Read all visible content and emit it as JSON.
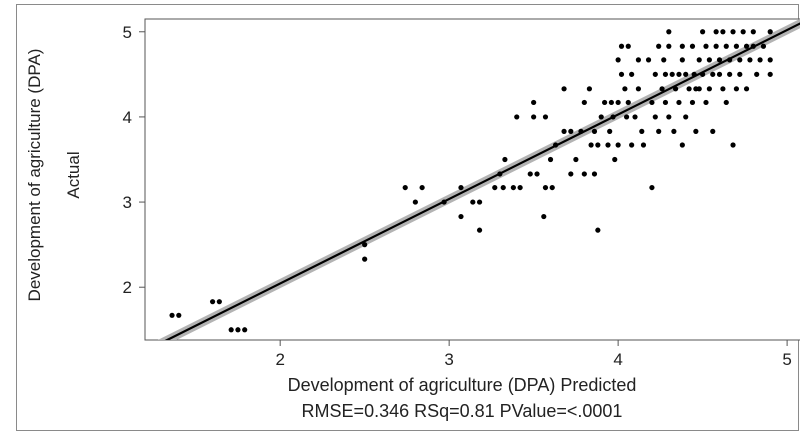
{
  "chart_data": {
    "type": "scatter",
    "title": "",
    "xlabel": "Development of agriculture (DPA) Predicted",
    "stats_line": "RMSE=0.346 RSq=0.81 PValue=<.0001",
    "ylabel_line1": "Development of agriculture (DPA)",
    "ylabel_line2": "Actual",
    "xlim": [
      1.2,
      5.1
    ],
    "ylim": [
      1.38,
      5.15
    ],
    "x_ticks": [
      2,
      3,
      4,
      5
    ],
    "y_ticks": [
      2,
      3,
      4,
      5
    ],
    "fit_line": {
      "x": [
        1.2,
        5.1
      ],
      "y": [
        1.25,
        5.12
      ]
    },
    "confidence_band_halfwidth": 0.055,
    "grid": false,
    "colors": {
      "points": "#000000",
      "fit_line": "#000000",
      "band": "#b3b3b3"
    },
    "points": [
      [
        1.36,
        1.67
      ],
      [
        1.4,
        1.67
      ],
      [
        1.6,
        1.83
      ],
      [
        1.64,
        1.83
      ],
      [
        1.71,
        1.5
      ],
      [
        1.75,
        1.5
      ],
      [
        1.79,
        1.5
      ],
      [
        2.5,
        2.5
      ],
      [
        2.5,
        2.33
      ],
      [
        2.74,
        3.17
      ],
      [
        2.8,
        3.0
      ],
      [
        2.84,
        3.17
      ],
      [
        2.97,
        3.0
      ],
      [
        3.07,
        2.83
      ],
      [
        3.07,
        3.17
      ],
      [
        3.14,
        3.0
      ],
      [
        3.18,
        2.67
      ],
      [
        3.18,
        3.0
      ],
      [
        3.27,
        3.17
      ],
      [
        3.3,
        3.33
      ],
      [
        3.32,
        3.17
      ],
      [
        3.33,
        3.5
      ],
      [
        3.38,
        3.17
      ],
      [
        3.4,
        4.0
      ],
      [
        3.42,
        3.17
      ],
      [
        3.48,
        3.33
      ],
      [
        3.5,
        4.17
      ],
      [
        3.5,
        4.0
      ],
      [
        3.52,
        3.33
      ],
      [
        3.56,
        2.83
      ],
      [
        3.57,
        3.17
      ],
      [
        3.57,
        4.0
      ],
      [
        3.6,
        3.5
      ],
      [
        3.61,
        3.17
      ],
      [
        3.63,
        3.67
      ],
      [
        3.68,
        3.83
      ],
      [
        3.68,
        4.33
      ],
      [
        3.72,
        3.83
      ],
      [
        3.72,
        3.33
      ],
      [
        3.75,
        3.5
      ],
      [
        3.78,
        3.83
      ],
      [
        3.8,
        4.17
      ],
      [
        3.8,
        3.33
      ],
      [
        3.83,
        4.33
      ],
      [
        3.84,
        3.67
      ],
      [
        3.86,
        3.83
      ],
      [
        3.86,
        3.33
      ],
      [
        3.88,
        2.67
      ],
      [
        3.88,
        3.67
      ],
      [
        3.9,
        4.0
      ],
      [
        3.92,
        4.17
      ],
      [
        3.94,
        3.67
      ],
      [
        3.95,
        3.83
      ],
      [
        3.97,
        4.0
      ],
      [
        3.98,
        3.5
      ],
      [
        4.0,
        4.17
      ],
      [
        4.0,
        4.67
      ],
      [
        4.02,
        4.83
      ],
      [
        4.02,
        4.5
      ],
      [
        4.04,
        4.33
      ],
      [
        4.05,
        4.0
      ],
      [
        4.06,
        4.83
      ],
      [
        4.06,
        4.17
      ],
      [
        4.08,
        3.67
      ],
      [
        4.1,
        4.0
      ],
      [
        4.12,
        4.33
      ],
      [
        4.14,
        3.83
      ],
      [
        4.15,
        3.67
      ],
      [
        4.18,
        4.67
      ],
      [
        4.2,
        4.17
      ],
      [
        4.2,
        3.17
      ],
      [
        4.22,
        4.5
      ],
      [
        4.22,
        4.0
      ],
      [
        4.24,
        4.83
      ],
      [
        4.24,
        3.83
      ],
      [
        4.26,
        4.33
      ],
      [
        4.27,
        4.67
      ],
      [
        4.28,
        4.17
      ],
      [
        4.3,
        5.0
      ],
      [
        4.3,
        4.83
      ],
      [
        4.3,
        4.0
      ],
      [
        4.32,
        4.5
      ],
      [
        4.33,
        3.83
      ],
      [
        4.34,
        4.33
      ],
      [
        4.36,
        4.17
      ],
      [
        4.38,
        4.83
      ],
      [
        4.38,
        4.67
      ],
      [
        4.38,
        3.67
      ],
      [
        4.4,
        4.5
      ],
      [
        4.4,
        4.0
      ],
      [
        4.42,
        4.33
      ],
      [
        4.44,
        4.83
      ],
      [
        4.44,
        4.17
      ],
      [
        4.45,
        4.5
      ],
      [
        4.46,
        3.83
      ],
      [
        4.48,
        4.67
      ],
      [
        4.48,
        4.33
      ],
      [
        4.5,
        5.0
      ],
      [
        4.5,
        4.5
      ],
      [
        4.52,
        4.83
      ],
      [
        4.52,
        4.17
      ],
      [
        4.54,
        4.67
      ],
      [
        4.54,
        4.33
      ],
      [
        4.56,
        4.5
      ],
      [
        4.56,
        3.83
      ],
      [
        4.58,
        5.0
      ],
      [
        4.58,
        4.83
      ],
      [
        4.6,
        4.67
      ],
      [
        4.6,
        4.5
      ],
      [
        4.62,
        5.0
      ],
      [
        4.62,
        4.33
      ],
      [
        4.64,
        4.83
      ],
      [
        4.64,
        4.17
      ],
      [
        4.66,
        4.67
      ],
      [
        4.66,
        4.5
      ],
      [
        4.68,
        3.67
      ],
      [
        4.68,
        5.0
      ],
      [
        4.7,
        4.83
      ],
      [
        4.7,
        4.33
      ],
      [
        4.72,
        4.67
      ],
      [
        4.72,
        4.5
      ],
      [
        4.74,
        5.0
      ],
      [
        4.76,
        4.83
      ],
      [
        4.76,
        4.33
      ],
      [
        4.78,
        4.67
      ],
      [
        4.8,
        5.0
      ],
      [
        4.8,
        4.83
      ],
      [
        4.82,
        4.5
      ],
      [
        4.84,
        4.67
      ],
      [
        4.9,
        5.0
      ],
      [
        4.9,
        4.67
      ],
      [
        4.9,
        4.5
      ],
      [
        4.86,
        4.83
      ],
      [
        4.46,
        4.33
      ],
      [
        4.36,
        4.5
      ],
      [
        4.28,
        4.5
      ],
      [
        4.12,
        4.67
      ],
      [
        4.08,
        4.5
      ],
      [
        3.96,
        4.17
      ],
      [
        4.0,
        3.67
      ]
    ]
  }
}
